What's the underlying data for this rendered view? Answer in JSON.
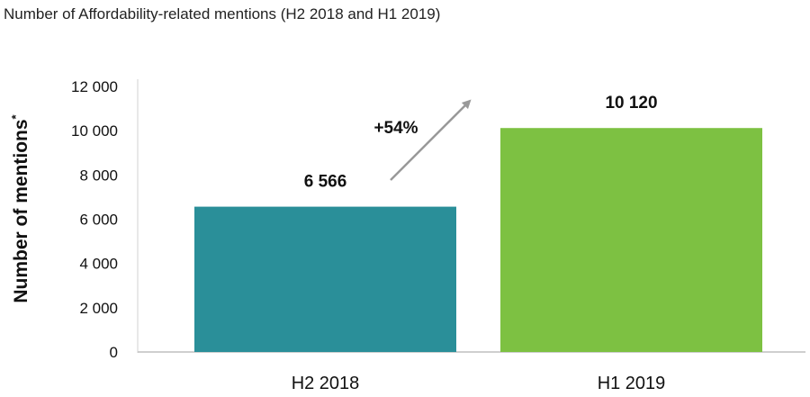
{
  "chart_data": {
    "type": "bar",
    "title": "Number of Affordability-related mentions (H2 2018 and H1 2019)",
    "ylabel": "Number of mentions",
    "ylabel_marker": "*",
    "xlabel": "",
    "ylim": [
      0,
      12000
    ],
    "yticks": [
      0,
      2000,
      4000,
      6000,
      8000,
      10000,
      12000
    ],
    "ytick_labels": [
      "0",
      "2 000",
      "4 000",
      "6 000",
      "8 000",
      "10 000",
      "12 000"
    ],
    "categories": [
      "H2 2018",
      "H1 2019"
    ],
    "values": [
      6566,
      10120
    ],
    "value_labels": [
      "6 566",
      "10 120"
    ],
    "bar_colors": [
      "#2a8f99",
      "#7dc142"
    ],
    "grid": false,
    "annotation": {
      "text": "+54%",
      "type": "arrow",
      "color": "#999999"
    }
  }
}
